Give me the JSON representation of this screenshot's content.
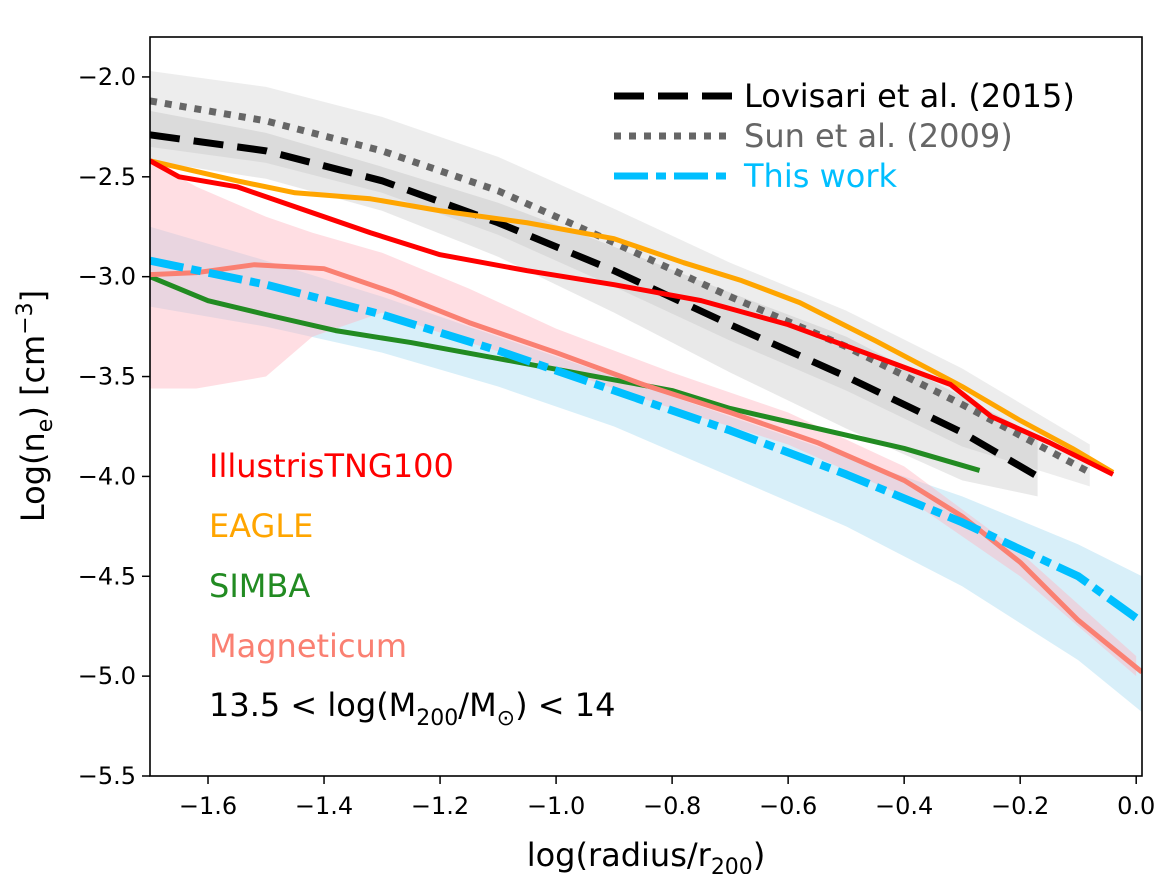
{
  "chart_data": {
    "type": "line",
    "title": "",
    "xlabel": "log(radius/r",
    "xlabel_sub": "200",
    "xlabel_end": ")",
    "ylabel": "Log(n",
    "ylabel_sub": "e",
    "ylabel_mid": ") [cm",
    "ylabel_sup": "−3",
    "ylabel_end": "]",
    "xlim": [
      -1.7,
      0.01
    ],
    "ylim": [
      -5.5,
      -1.8
    ],
    "x_ticks": [
      -1.6,
      -1.4,
      -1.2,
      -1.0,
      -0.8,
      -0.6,
      -0.4,
      -0.2,
      0.0
    ],
    "x_tick_labels": [
      "−1.6",
      "−1.4",
      "−1.2",
      "−1.0",
      "−0.8",
      "−0.6",
      "−0.4",
      "−0.2",
      "0.0"
    ],
    "y_ticks": [
      -5.5,
      -5.0,
      -4.5,
      -4.0,
      -3.5,
      -3.0,
      -2.5,
      -2.0
    ],
    "y_tick_labels": [
      "−5.5",
      "−5.0",
      "−4.5",
      "−4.0",
      "−3.5",
      "−3.0",
      "−2.5",
      "−2.0"
    ],
    "grid": false,
    "legend_position": "top-right",
    "legend": [
      {
        "label": "Lovisari et al.  (2015)",
        "color": "#000000",
        "style": "dashed"
      },
      {
        "label": "Sun et al.  (2009)",
        "color": "#666666",
        "style": "dotted"
      },
      {
        "label": "This work",
        "color": "#00bfff",
        "style": "dashdot"
      }
    ],
    "bands": [
      {
        "name": "Lovisari et al. (2015) scatter",
        "color": "#999999",
        "opacity": 0.22,
        "x": [
          -1.7,
          -1.5,
          -1.3,
          -1.1,
          -0.9,
          -0.7,
          -0.5,
          -0.3,
          -0.17
        ],
        "upper": [
          -2.17,
          -2.28,
          -2.45,
          -2.63,
          -2.85,
          -3.08,
          -3.3,
          -3.6,
          -3.8
        ],
        "lower": [
          -2.42,
          -2.51,
          -2.67,
          -2.9,
          -3.18,
          -3.48,
          -3.76,
          -4.02,
          -4.1
        ]
      },
      {
        "name": "Sun et al. (2009) scatter",
        "color": "#999999",
        "opacity": 0.18,
        "x": [
          -1.7,
          -1.5,
          -1.3,
          -1.1,
          -0.9,
          -0.7,
          -0.5,
          -0.3,
          -0.08
        ],
        "upper": [
          -1.97,
          -2.05,
          -2.2,
          -2.4,
          -2.66,
          -2.93,
          -3.17,
          -3.46,
          -3.84
        ],
        "lower": [
          -2.35,
          -2.43,
          -2.58,
          -2.79,
          -3.05,
          -3.32,
          -3.57,
          -3.85,
          -4.05
        ]
      },
      {
        "name": "This work scatter",
        "color": "#87ceeb",
        "opacity": 0.32,
        "x": [
          -1.7,
          -1.5,
          -1.3,
          -1.1,
          -0.9,
          -0.7,
          -0.5,
          -0.3,
          -0.1,
          0.01
        ],
        "upper": [
          -2.75,
          -2.92,
          -3.1,
          -3.3,
          -3.5,
          -3.7,
          -3.9,
          -4.1,
          -4.34,
          -4.5
        ],
        "lower": [
          -3.15,
          -3.25,
          -3.38,
          -3.55,
          -3.75,
          -4.0,
          -4.25,
          -4.55,
          -4.92,
          -5.18
        ]
      },
      {
        "name": "Magneticum scatter",
        "color": "#ffb6c1",
        "opacity": 0.45,
        "x": [
          -1.7,
          -1.62,
          -1.5,
          -1.42,
          -1.3,
          -1.15,
          -1.0,
          -0.8,
          -0.6,
          -0.4,
          -0.2,
          0.0
        ],
        "upper": [
          -2.42,
          -2.55,
          -2.7,
          -2.78,
          -2.88,
          -3.06,
          -3.26,
          -3.48,
          -3.68,
          -3.95,
          -4.38,
          -4.9
        ],
        "lower": [
          -3.56,
          -3.56,
          -3.5,
          -3.3,
          -3.18,
          -3.33,
          -3.46,
          -3.66,
          -3.84,
          -4.1,
          -4.5,
          -5.0
        ]
      }
    ],
    "series": [
      {
        "name": "Lovisari et al. (2015)",
        "color": "#000000",
        "style": "dashed",
        "width": 7,
        "x": [
          -1.7,
          -1.5,
          -1.3,
          -1.1,
          -0.9,
          -0.7,
          -0.5,
          -0.3,
          -0.17
        ],
        "y": [
          -2.29,
          -2.37,
          -2.52,
          -2.73,
          -2.97,
          -3.24,
          -3.5,
          -3.78,
          -4.0
        ]
      },
      {
        "name": "Sun et al. (2009)",
        "color": "#666666",
        "style": "dotted",
        "width": 7,
        "x": [
          -1.7,
          -1.5,
          -1.3,
          -1.1,
          -0.9,
          -0.7,
          -0.5,
          -0.3,
          -0.08
        ],
        "y": [
          -2.12,
          -2.22,
          -2.37,
          -2.57,
          -2.83,
          -3.1,
          -3.35,
          -3.64,
          -3.98
        ]
      },
      {
        "name": "EAGLE",
        "color": "#ffa500",
        "style": "solid",
        "width": 5,
        "x": [
          -1.7,
          -1.55,
          -1.45,
          -1.32,
          -1.2,
          -1.05,
          -0.9,
          -0.78,
          -0.68,
          -0.58,
          -0.45,
          -0.3,
          -0.2,
          -0.11,
          -0.04
        ],
        "y": [
          -2.42,
          -2.52,
          -2.58,
          -2.61,
          -2.67,
          -2.73,
          -2.81,
          -2.93,
          -3.02,
          -3.13,
          -3.32,
          -3.55,
          -3.72,
          -3.86,
          -3.98
        ]
      },
      {
        "name": "IllustrisTNG100",
        "color": "#ff0000",
        "style": "solid",
        "width": 5,
        "x": [
          -1.7,
          -1.65,
          -1.55,
          -1.45,
          -1.32,
          -1.2,
          -1.05,
          -0.9,
          -0.75,
          -0.6,
          -0.45,
          -0.32,
          -0.25,
          -0.15,
          -0.04
        ],
        "y": [
          -2.42,
          -2.5,
          -2.55,
          -2.65,
          -2.78,
          -2.89,
          -2.97,
          -3.04,
          -3.12,
          -3.24,
          -3.4,
          -3.54,
          -3.7,
          -3.83,
          -3.99
        ]
      },
      {
        "name": "SIMBA",
        "color": "#228b22",
        "style": "solid",
        "width": 5,
        "x": [
          -1.7,
          -1.6,
          -1.5,
          -1.38,
          -1.25,
          -1.1,
          -0.95,
          -0.8,
          -0.7,
          -0.55,
          -0.4,
          -0.27
        ],
        "y": [
          -3.0,
          -3.12,
          -3.19,
          -3.27,
          -3.33,
          -3.41,
          -3.49,
          -3.57,
          -3.66,
          -3.76,
          -3.86,
          -3.97
        ]
      },
      {
        "name": "Magneticum",
        "color": "#fa8072",
        "style": "solid",
        "width": 5,
        "x": [
          -1.7,
          -1.62,
          -1.52,
          -1.4,
          -1.28,
          -1.15,
          -1.0,
          -0.85,
          -0.7,
          -0.55,
          -0.4,
          -0.3,
          -0.2,
          -0.1,
          0.01
        ],
        "y": [
          -2.99,
          -2.98,
          -2.94,
          -2.96,
          -3.08,
          -3.23,
          -3.38,
          -3.54,
          -3.68,
          -3.83,
          -4.02,
          -4.2,
          -4.43,
          -4.72,
          -4.98
        ]
      },
      {
        "name": "This work",
        "color": "#00bfff",
        "style": "dashdot",
        "width": 8,
        "x": [
          -1.7,
          -1.5,
          -1.3,
          -1.1,
          -0.9,
          -0.7,
          -0.5,
          -0.3,
          -0.1,
          0.01
        ],
        "y": [
          -2.92,
          -3.04,
          -3.19,
          -3.37,
          -3.57,
          -3.77,
          -3.99,
          -4.23,
          -4.5,
          -4.73
        ]
      }
    ],
    "annotations": [
      {
        "text": "IllustrisTNG100",
        "color": "#ff0000"
      },
      {
        "text": "EAGLE",
        "color": "#ffa500"
      },
      {
        "text": "SIMBA",
        "color": "#228b22"
      },
      {
        "text": "Magneticum",
        "color": "#fa8072"
      }
    ],
    "mass_range": {
      "prefix": "13.5 < log(M",
      "sub1": "200",
      "mid": "/M",
      "sub2": "⊙",
      "suffix": ") < 14",
      "color": "#000000"
    }
  }
}
